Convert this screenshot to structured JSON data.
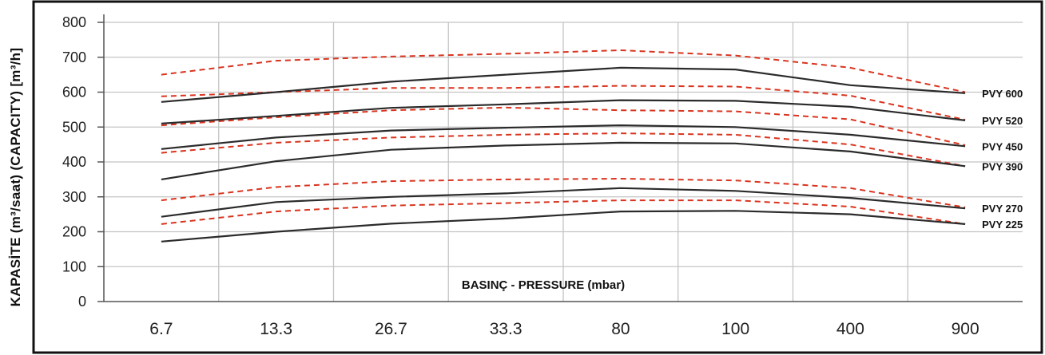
{
  "chart_data": {
    "type": "line",
    "xlabel": "BASINÇ - PRESSURE (mbar)",
    "ylabel": "KAPASİTE (m³/saat)  (CAPACITY) [m³/h]",
    "categories": [
      "6.7",
      "13.3",
      "26.7",
      "33.3",
      "80",
      "100",
      "400",
      "900"
    ],
    "ylim": [
      0,
      800
    ],
    "yticks": [
      "0",
      "100",
      "200",
      "300",
      "400",
      "500",
      "600",
      "700",
      "800"
    ],
    "grid": true,
    "colors": {
      "solid": "#2b2b2b",
      "dashed": "#d9341f",
      "grid": "#c4c4c4"
    },
    "series": [
      {
        "name": "PVY 600",
        "values": [
          572,
          600,
          630,
          650,
          670,
          665,
          620,
          597
        ],
        "upper": [
          650,
          690,
          702,
          710,
          720,
          705,
          670,
          600
        ],
        "lower": [
          588,
          600,
          612,
          612,
          618,
          616,
          590,
          521
        ]
      },
      {
        "name": "PVY 520",
        "values": [
          510,
          532,
          555,
          565,
          577,
          575,
          558,
          519
        ],
        "upper": [
          505,
          528,
          548,
          556,
          548,
          545,
          522,
          448
        ],
        "lower": null
      },
      {
        "name": "PVY 450",
        "values": [
          437,
          470,
          490,
          498,
          505,
          500,
          478,
          445
        ],
        "upper": [
          426,
          455,
          470,
          478,
          482,
          478,
          450,
          388
        ],
        "lower": null
      },
      {
        "name": "PVY 390",
        "values": [
          350,
          402,
          435,
          447,
          455,
          453,
          430,
          388
        ],
        "upper": null,
        "lower": null
      },
      {
        "name": "PVY 270",
        "values": [
          243,
          285,
          300,
          310,
          325,
          317,
          297,
          267
        ],
        "upper": [
          290,
          328,
          345,
          350,
          352,
          347,
          325,
          270
        ],
        "lower": [
          222,
          258,
          275,
          282,
          290,
          290,
          272,
          222
        ]
      },
      {
        "name": "PVY 225",
        "values": [
          172,
          200,
          223,
          238,
          258,
          260,
          250,
          222
        ],
        "upper": null,
        "lower": null
      }
    ]
  }
}
